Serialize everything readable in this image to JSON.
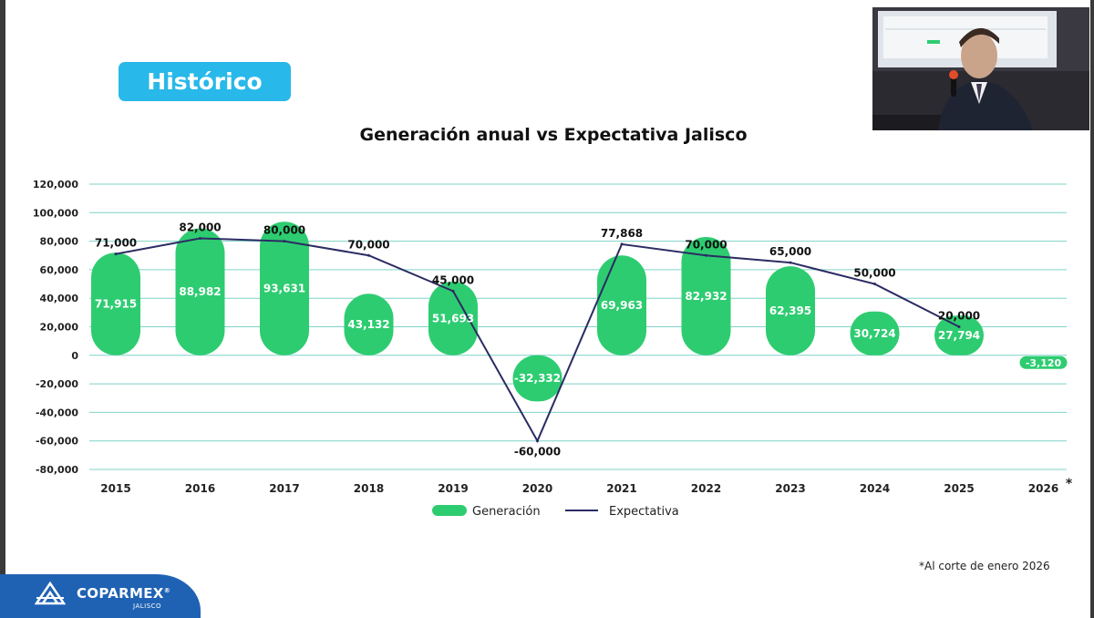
{
  "badge_label": "Histórico",
  "footnote": "*Al corte de enero 2026",
  "logo": {
    "name": "COPARMEX",
    "registered": "®",
    "sub": "JALISCO"
  },
  "colors": {
    "bar": "#2ecc71",
    "line": "#2b2c63",
    "grid": "#7fd3c8",
    "badge": "#29b8ea",
    "logo_bg": "#1f62b4"
  },
  "chart_data": {
    "type": "bar",
    "title": "Generación anual vs Expectativa Jalisco",
    "categories": [
      "2015",
      "2016",
      "2017",
      "2018",
      "2019",
      "2020",
      "2021",
      "2022",
      "2023",
      "2024",
      "2025",
      "2026"
    ],
    "category_marks": [
      "",
      "",
      "",
      "",
      "",
      "",
      "",
      "",
      "",
      "",
      "",
      "*"
    ],
    "ylim": [
      -80000,
      120000
    ],
    "yticks": [
      120000,
      100000,
      80000,
      60000,
      40000,
      20000,
      0,
      -20000,
      -40000,
      -60000,
      -80000
    ],
    "ytick_labels": [
      "120,000",
      "100,000",
      "80,000",
      "60,000",
      "40,000",
      "20,000",
      "0",
      "-20,000",
      "-40,000",
      "-60,000",
      "-80,000"
    ],
    "grid": true,
    "legend": "bottom-center",
    "series": [
      {
        "name": "Generación",
        "type": "bar",
        "values": [
          71915,
          88982,
          93631,
          43132,
          51693,
          -32332,
          69963,
          82932,
          62395,
          30724,
          27794,
          -3120
        ],
        "labels": [
          "71,915",
          "88,982",
          "93,631",
          "43,132",
          "51,693",
          "-32,332",
          "69,963",
          "82,932",
          "62,395",
          "30,724",
          "27,794",
          "-3,120"
        ]
      },
      {
        "name": "Expectativa",
        "type": "line",
        "values": [
          71000,
          82000,
          80000,
          70000,
          45000,
          -60000,
          77868,
          70000,
          65000,
          50000,
          20000,
          null
        ],
        "labels": [
          "71,000",
          "82,000",
          "80,000",
          "70,000",
          "45,000",
          "-60,000",
          "77,868",
          "70,000",
          "65,000",
          "50,000",
          "20,000",
          ""
        ]
      }
    ]
  }
}
